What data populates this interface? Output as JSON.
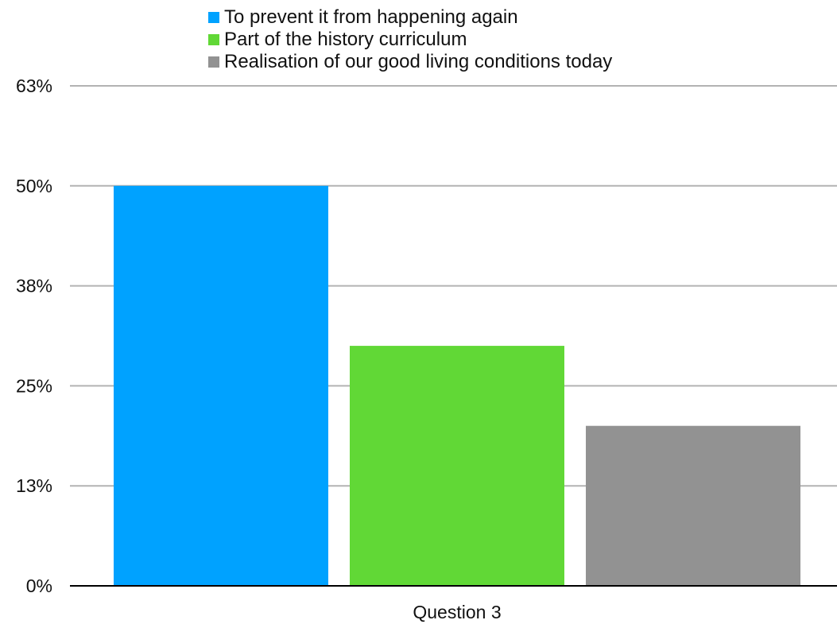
{
  "chart_data": {
    "type": "bar",
    "categories": [
      "Question 3"
    ],
    "series": [
      {
        "name": "To prevent it from happening again",
        "values": [
          50
        ],
        "color": "#00a2ff"
      },
      {
        "name": "Part of the history curriculum",
        "values": [
          30
        ],
        "color": "#61d836"
      },
      {
        "name": "Realisation of our good living conditions today",
        "values": [
          20
        ],
        "color": "#929292"
      }
    ],
    "ylim": [
      0,
      62.5
    ],
    "yticks": [
      0,
      12.5,
      25,
      37.5,
      50,
      62.5
    ],
    "ytick_labels": [
      "0%",
      "13%",
      "25%",
      "38%",
      "50%",
      "63%"
    ],
    "grid": true,
    "legend_position": "top"
  }
}
